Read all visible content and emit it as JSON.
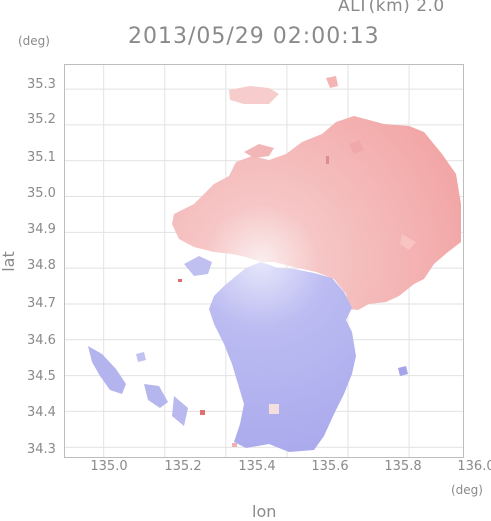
{
  "header": {
    "altitude_label": "ALT(km) 2.0",
    "timestamp": "2013/05/29 02:00:13"
  },
  "axes": {
    "y_unit": "(deg)",
    "x_unit": "(deg)",
    "y_label": "lat",
    "x_label": "lon",
    "y_ticks": [
      "35.3",
      "35.2",
      "35.1",
      "35.0",
      "34.9",
      "34.8",
      "34.7",
      "34.6",
      "34.5",
      "34.4",
      "34.3"
    ],
    "x_ticks": [
      "135.0",
      "135.2",
      "135.4",
      "135.6",
      "135.8",
      "136.0"
    ]
  },
  "map": {
    "type": "doppler-velocity-map",
    "lon_range": [
      134.87,
      136.18
    ],
    "lat_range": [
      34.27,
      35.37
    ],
    "radar_center": {
      "lon": 135.52,
      "lat": 34.82
    },
    "colors": {
      "receding": "#f2a6a6",
      "approaching": "#a9a9ee",
      "frame": "#bdbdbd",
      "grid": "#d6d6d6",
      "text": "#8a8a8a"
    }
  }
}
